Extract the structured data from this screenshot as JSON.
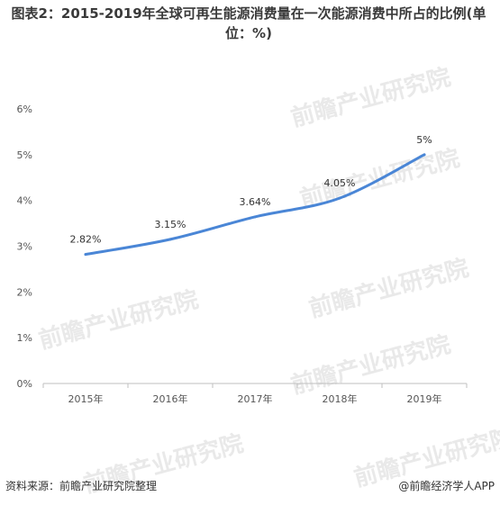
{
  "header": {
    "title": "图表2：2015-2019年全球可再生能源消费量在一次能源消费中所占的比例(单位：%)"
  },
  "watermark": {
    "text": "前瞻产业研究院"
  },
  "chart_data": {
    "type": "line",
    "categories": [
      "2015年",
      "2016年",
      "2017年",
      "2018年",
      "2019年"
    ],
    "series": [
      {
        "values": [
          2.82,
          3.15,
          3.64,
          4.05,
          5.0
        ],
        "labels": [
          "2.82%",
          "3.15%",
          "3.64%",
          "4.05%",
          "5%"
        ]
      }
    ],
    "yticks": [
      "0%",
      "1%",
      "2%",
      "3%",
      "4%",
      "5%",
      "6%"
    ],
    "ylim": [
      0,
      6
    ],
    "grid": false,
    "line_color": "#4a86d6",
    "smooth": true
  },
  "footer": {
    "source": "资料来源：前瞻产业研究院整理",
    "brand": "@前瞻经济学人APP"
  }
}
